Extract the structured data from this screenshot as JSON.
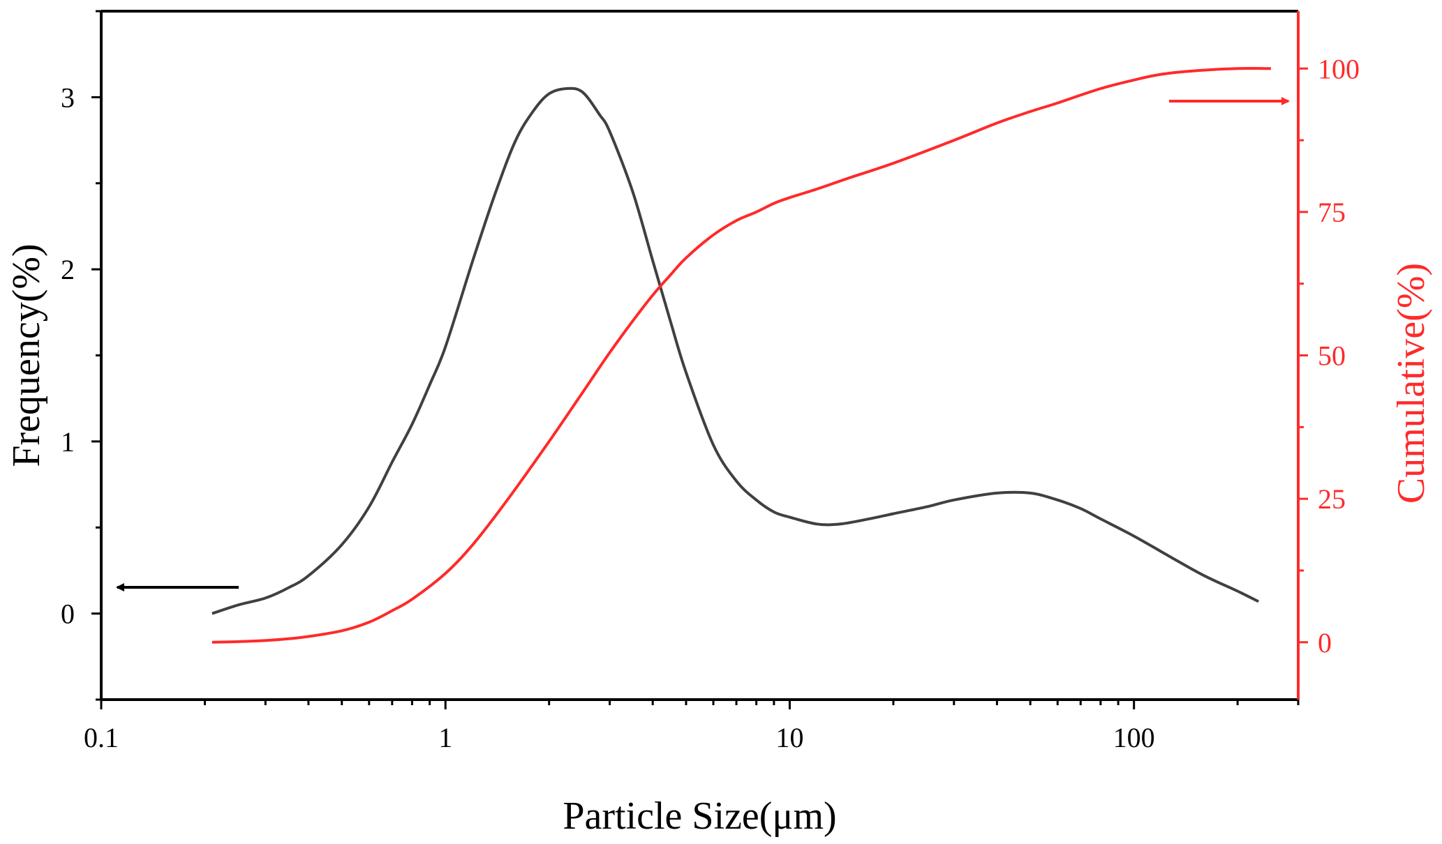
{
  "chart_data": {
    "type": "line",
    "xlabel": "Particle Size(μm)",
    "ylabel_left": "Frequency(%)",
    "ylabel_right": "Cumulative(%)",
    "x_scale": "log",
    "xlim": [
      0.1,
      300
    ],
    "x_ticks": [
      0.1,
      1,
      10,
      100
    ],
    "x_tick_labels": [
      "0.1",
      "1",
      "10",
      "100"
    ],
    "ylim_left": [
      -0.5,
      3.5
    ],
    "y_ticks_left": [
      0,
      1,
      2,
      3
    ],
    "y_tick_labels_left": [
      "0",
      "1",
      "2",
      "3"
    ],
    "ylim_right": [
      -10,
      110
    ],
    "y_ticks_right": [
      0,
      25,
      50,
      75,
      100
    ],
    "y_tick_labels_right": [
      "0",
      "25",
      "50",
      "75",
      "100"
    ],
    "grid": false,
    "colors": {
      "frequency": "#404040",
      "cumulative": "#ff2a2a",
      "left_axis": "#000000",
      "right_axis": "#ff2a2a"
    },
    "series": [
      {
        "axis": "left",
        "color": "#404040",
        "x": [
          0.21,
          0.25,
          0.3,
          0.35,
          0.4,
          0.5,
          0.6,
          0.7,
          0.8,
          0.9,
          1.0,
          1.2,
          1.4,
          1.6,
          1.8,
          2.0,
          2.25,
          2.5,
          2.8,
          3.0,
          3.5,
          4.0,
          4.5,
          5.0,
          6.0,
          7.0,
          8.0,
          9.0,
          10,
          12,
          14,
          17,
          20,
          25,
          30,
          40,
          50,
          60,
          70,
          80,
          100,
          130,
          160,
          200,
          230
        ],
        "y": [
          0.0,
          0.05,
          0.09,
          0.15,
          0.22,
          0.4,
          0.62,
          0.88,
          1.1,
          1.33,
          1.55,
          2.05,
          2.45,
          2.75,
          2.92,
          3.02,
          3.05,
          3.03,
          2.9,
          2.8,
          2.45,
          2.05,
          1.7,
          1.4,
          0.98,
          0.77,
          0.66,
          0.59,
          0.56,
          0.52,
          0.52,
          0.55,
          0.58,
          0.62,
          0.66,
          0.7,
          0.7,
          0.66,
          0.61,
          0.55,
          0.45,
          0.32,
          0.22,
          0.13,
          0.07
        ]
      },
      {
        "axis": "right",
        "color": "#ff2a2a",
        "x": [
          0.21,
          0.25,
          0.3,
          0.35,
          0.4,
          0.5,
          0.6,
          0.7,
          0.8,
          1.0,
          1.2,
          1.5,
          2.0,
          2.5,
          3.0,
          3.5,
          4.0,
          4.5,
          5.0,
          6.0,
          7.0,
          8.0,
          9.0,
          10,
          12,
          15,
          20,
          30,
          40,
          50,
          60,
          80,
          100,
          120,
          150,
          200,
          250
        ],
        "y": [
          0,
          0.1,
          0.3,
          0.6,
          1.0,
          2.0,
          3.5,
          5.5,
          7.5,
          12,
          17,
          24.5,
          35,
          43.5,
          50.5,
          56,
          60.5,
          64,
          67,
          71,
          73.5,
          75,
          76.5,
          77.5,
          79,
          81,
          83.5,
          87.5,
          90.5,
          92.5,
          94,
          96.5,
          98,
          99,
          99.6,
          100,
          100
        ]
      }
    ],
    "annotations": [
      {
        "type": "arrow",
        "direction": "left",
        "color": "#000000",
        "points_to": "left axis"
      },
      {
        "type": "arrow",
        "direction": "right",
        "color": "#ff2a2a",
        "points_to": "right axis"
      }
    ]
  }
}
